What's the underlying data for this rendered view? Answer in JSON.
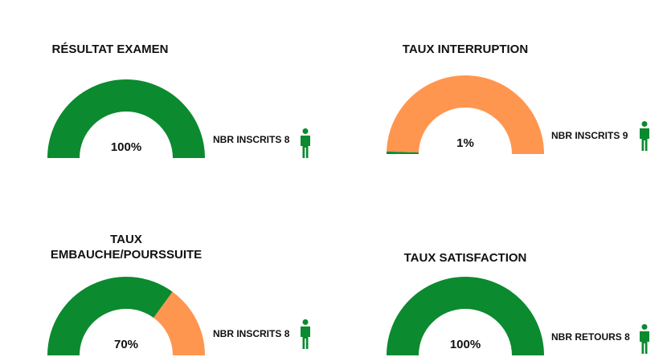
{
  "chart_data": [
    {
      "type": "gauge",
      "title": "RÉSULTAT EXAMEN",
      "values": [
        100
      ],
      "value_labels": [
        "100%"
      ],
      "ylim": [
        0,
        100
      ],
      "counter_label": "NBR INSCRITS",
      "counter": 8,
      "color": "#0b8a2f",
      "track_color": "#ff9650"
    },
    {
      "type": "gauge",
      "title": "TAUX INTERRUPTION",
      "values": [
        1
      ],
      "value_labels": [
        "1%"
      ],
      "ylim": [
        0,
        100
      ],
      "counter_label": "NBR INSCRITS",
      "counter": 9,
      "color": "#0b8a2f",
      "track_color": "#ff9650"
    },
    {
      "type": "gauge",
      "title": "TAUX EMBAUCHE/POURSSUITE",
      "values": [
        70
      ],
      "value_labels": [
        "70%"
      ],
      "ylim": [
        0,
        100
      ],
      "counter_label": "NBR INSCRITS",
      "counter": 8,
      "color": "#0b8a2f",
      "track_color": "#ff9650"
    },
    {
      "type": "gauge",
      "title": "TAUX SATISFACTION",
      "values": [
        100
      ],
      "value_labels": [
        "100%"
      ],
      "ylim": [
        0,
        100
      ],
      "counter_label": "NBR RETOURS",
      "counter": 8,
      "color": "#0b8a2f",
      "track_color": "#ff9650"
    }
  ]
}
